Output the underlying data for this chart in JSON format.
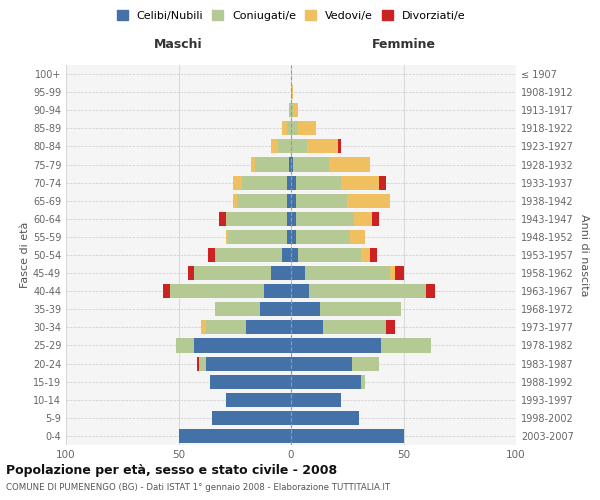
{
  "age_groups": [
    "0-4",
    "5-9",
    "10-14",
    "15-19",
    "20-24",
    "25-29",
    "30-34",
    "35-39",
    "40-44",
    "45-49",
    "50-54",
    "55-59",
    "60-64",
    "65-69",
    "70-74",
    "75-79",
    "80-84",
    "85-89",
    "90-94",
    "95-99",
    "100+"
  ],
  "birth_years": [
    "2003-2007",
    "1998-2002",
    "1993-1997",
    "1988-1992",
    "1983-1987",
    "1978-1982",
    "1973-1977",
    "1968-1972",
    "1963-1967",
    "1958-1962",
    "1953-1957",
    "1948-1952",
    "1943-1947",
    "1938-1942",
    "1933-1937",
    "1928-1932",
    "1923-1927",
    "1918-1922",
    "1913-1917",
    "1908-1912",
    "≤ 1907"
  ],
  "males": {
    "celibi": [
      50,
      35,
      29,
      36,
      38,
      43,
      20,
      14,
      12,
      9,
      4,
      2,
      2,
      2,
      2,
      1,
      0,
      0,
      0,
      0,
      0
    ],
    "coniugati": [
      0,
      0,
      0,
      0,
      3,
      8,
      18,
      20,
      42,
      34,
      30,
      26,
      27,
      22,
      20,
      15,
      6,
      2,
      1,
      0,
      0
    ],
    "vedovi": [
      0,
      0,
      0,
      0,
      0,
      0,
      2,
      0,
      0,
      0,
      0,
      1,
      0,
      2,
      4,
      2,
      3,
      2,
      0,
      0,
      0
    ],
    "divorziati": [
      0,
      0,
      0,
      0,
      1,
      0,
      0,
      0,
      3,
      3,
      3,
      0,
      3,
      0,
      0,
      0,
      0,
      0,
      0,
      0,
      0
    ]
  },
  "females": {
    "nubili": [
      50,
      30,
      22,
      31,
      27,
      40,
      14,
      13,
      8,
      6,
      3,
      2,
      2,
      2,
      2,
      1,
      0,
      0,
      0,
      0,
      0
    ],
    "coniugate": [
      0,
      0,
      0,
      2,
      12,
      22,
      28,
      36,
      52,
      38,
      28,
      24,
      26,
      23,
      20,
      16,
      7,
      3,
      1,
      0,
      0
    ],
    "vedove": [
      0,
      0,
      0,
      0,
      0,
      0,
      0,
      0,
      0,
      2,
      4,
      7,
      8,
      19,
      17,
      18,
      14,
      8,
      2,
      1,
      0
    ],
    "divorziate": [
      0,
      0,
      0,
      0,
      0,
      0,
      4,
      0,
      4,
      4,
      3,
      0,
      3,
      0,
      3,
      0,
      1,
      0,
      0,
      0,
      0
    ]
  },
  "colors": {
    "celibi": "#4472a8",
    "coniugati": "#b5c994",
    "vedovi": "#f0c060",
    "divorziati": "#cc2222"
  },
  "title": "Popolazione per età, sesso e stato civile - 2008",
  "subtitle": "COMUNE DI PUMENENGO (BG) - Dati ISTAT 1° gennaio 2008 - Elaborazione TUTTITALIA.IT",
  "xlabel_left": "Maschi",
  "xlabel_right": "Femmine",
  "ylabel_left": "Fasce di età",
  "ylabel_right": "Anni di nascita",
  "xlim": 100,
  "grid_color": "#cccccc",
  "legend_labels": [
    "Celibi/Nubili",
    "Coniugati/e",
    "Vedovi/e",
    "Divorziati/e"
  ]
}
